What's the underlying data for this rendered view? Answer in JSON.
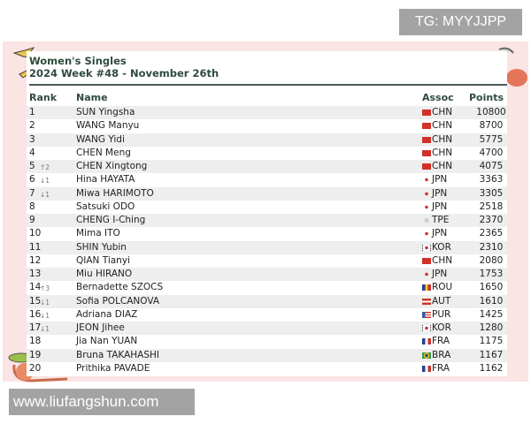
{
  "watermarks": {
    "top": "TG: MYYJJPP",
    "bottom": "www.liufangshun.com"
  },
  "title": {
    "line1": "Women's Singles",
    "line2": "2024 Week #48 - November 26th"
  },
  "columns": {
    "rank": "Rank",
    "name": "Name",
    "assoc": "Assoc",
    "points": "Points"
  },
  "rows": [
    {
      "rank": "1",
      "change": "",
      "name": "SUN Yingsha",
      "flag": "flag-chn",
      "assoc": "CHN",
      "points": "10800"
    },
    {
      "rank": "2",
      "change": "",
      "name": "WANG Manyu",
      "flag": "flag-chn",
      "assoc": "CHN",
      "points": "8700"
    },
    {
      "rank": "3",
      "change": "",
      "name": "WANG Yidi",
      "flag": "flag-chn",
      "assoc": "CHN",
      "points": "5775"
    },
    {
      "rank": "4",
      "change": "",
      "name": "CHEN Meng",
      "flag": "flag-chn",
      "assoc": "CHN",
      "points": "4700"
    },
    {
      "rank": "5",
      "change": "↑2",
      "name": "CHEN Xingtong",
      "flag": "flag-chn",
      "assoc": "CHN",
      "points": "4075"
    },
    {
      "rank": "6",
      "change": "↓1",
      "name": "Hina HAYATA",
      "flag": "flag-jpn",
      "assoc": "JPN",
      "points": "3363"
    },
    {
      "rank": "7",
      "change": "↓1",
      "name": "Miwa HARIMOTO",
      "flag": "flag-jpn",
      "assoc": "JPN",
      "points": "3305"
    },
    {
      "rank": "8",
      "change": "",
      "name": "Satsuki ODO",
      "flag": "flag-jpn",
      "assoc": "JPN",
      "points": "2518"
    },
    {
      "rank": "9",
      "change": "",
      "name": "CHENG I-Ching",
      "flag": "flag-tpe",
      "assoc": "TPE",
      "points": "2370"
    },
    {
      "rank": "10",
      "change": "",
      "name": "Mima ITO",
      "flag": "flag-jpn",
      "assoc": "JPN",
      "points": "2365"
    },
    {
      "rank": "11",
      "change": "",
      "name": "SHIN Yubin",
      "flag": "flag-kor",
      "assoc": "KOR",
      "points": "2310"
    },
    {
      "rank": "12",
      "change": "",
      "name": "QIAN Tianyi",
      "flag": "flag-chn",
      "assoc": "CHN",
      "points": "2080"
    },
    {
      "rank": "13",
      "change": "",
      "name": "Miu HIRANO",
      "flag": "flag-jpn",
      "assoc": "JPN",
      "points": "1753"
    },
    {
      "rank": "14",
      "change": "↑3",
      "name": "Bernadette SZOCS",
      "flag": "flag-rou",
      "assoc": "ROU",
      "points": "1650"
    },
    {
      "rank": "15",
      "change": "↓1",
      "name": "Sofia POLCANOVA",
      "flag": "flag-aut",
      "assoc": "AUT",
      "points": "1610"
    },
    {
      "rank": "16",
      "change": "↓1",
      "name": "Adriana DIAZ",
      "flag": "flag-pur",
      "assoc": "PUR",
      "points": "1425"
    },
    {
      "rank": "17",
      "change": "↓1",
      "name": "JEON Jihee",
      "flag": "flag-kor",
      "assoc": "KOR",
      "points": "1280"
    },
    {
      "rank": "18",
      "change": "",
      "name": "Jia Nan YUAN",
      "flag": "flag-fra",
      "assoc": "FRA",
      "points": "1175"
    },
    {
      "rank": "19",
      "change": "",
      "name": "Bruna TAKAHASHI",
      "flag": "flag-bra",
      "assoc": "BRA",
      "points": "1167"
    },
    {
      "rank": "20",
      "change": "",
      "name": "Prithika PAVADE",
      "flag": "flag-fra",
      "assoc": "FRA",
      "points": "1162"
    }
  ],
  "colors": {
    "panel": "#fbe4e4",
    "title": "#2e4a3c",
    "row_alt": "#eeeeee"
  }
}
